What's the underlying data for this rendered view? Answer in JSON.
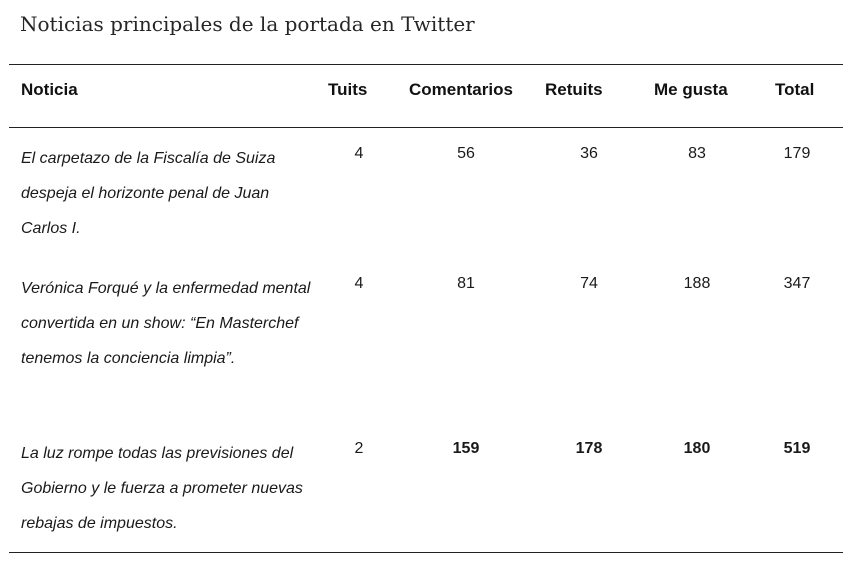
{
  "caption": "Noticias principales de la portada en Twitter",
  "table": {
    "headers": {
      "noticia": "Noticia",
      "tuits": "Tuits",
      "comentarios": "Comentarios",
      "retuits": "Retuits",
      "me_gusta": "Me gusta",
      "total": "Total"
    },
    "rows": [
      {
        "noticia": "El carpetazo de la Fiscalía de Suiza despeja el horizonte penal de Juan Carlos I.",
        "tuits": "4",
        "comentarios": "56",
        "retuits": "36",
        "me_gusta": "83",
        "total": "179"
      },
      {
        "noticia": "Verónica Forqué y la enfermedad mental convertida en un show: “En Masterchef tenemos la conciencia limpia”.",
        "tuits": "4",
        "comentarios": "81",
        "retuits": "74",
        "me_gusta": "188",
        "total": "347"
      },
      {
        "noticia": "La luz rompe todas las previsiones del Gobierno y le fuerza a prometer nuevas rebajas de impuestos.",
        "tuits": "2",
        "comentarios": "159",
        "retuits": "178",
        "me_gusta": "180",
        "total": "519"
      }
    ]
  }
}
